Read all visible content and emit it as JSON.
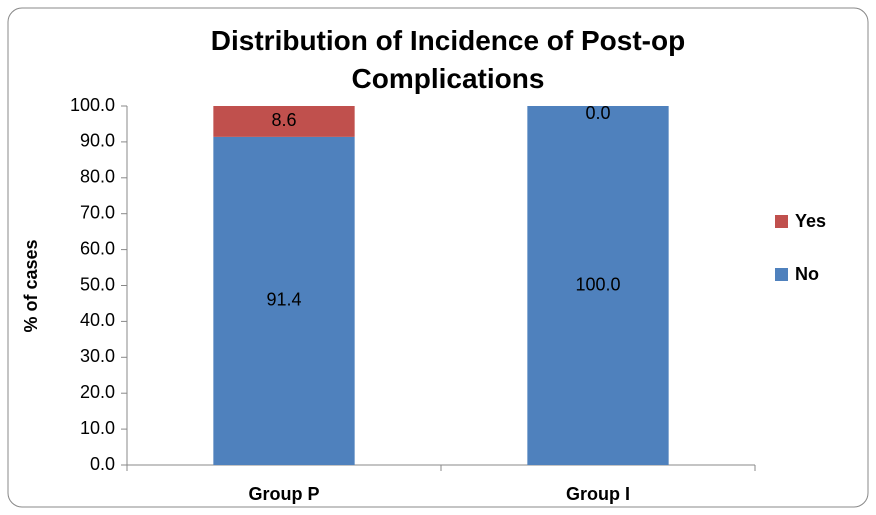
{
  "chart_data": {
    "type": "stacked_bar",
    "title": "Distribution of Incidence of Post-op Complications",
    "ylabel": "% of cases",
    "categories": [
      "Group P",
      "Group I"
    ],
    "series": [
      {
        "name": "No",
        "color": "#4f81bd",
        "values": [
          91.4,
          100
        ],
        "value_labels": [
          "91.4",
          "100.0"
        ]
      },
      {
        "name": "Yes",
        "color": "#c0504d",
        "values": [
          8.6,
          0
        ],
        "value_labels": [
          "8.6",
          "0.0"
        ]
      }
    ],
    "ylim": [
      0,
      100
    ],
    "yticks": [
      {
        "value": 0,
        "label": "0.0"
      },
      {
        "value": 10,
        "label": "10.0"
      },
      {
        "value": 20,
        "label": "20.0"
      },
      {
        "value": 30,
        "label": "30.0"
      },
      {
        "value": 40,
        "label": "40.0"
      },
      {
        "value": 50,
        "label": "50.0"
      },
      {
        "value": 60,
        "label": "60.0"
      },
      {
        "value": 70,
        "label": "70.0"
      },
      {
        "value": 80,
        "label": "80.0"
      },
      {
        "value": 90,
        "label": "90.0"
      },
      {
        "value": 100,
        "label": "100.0"
      }
    ],
    "grid": false,
    "legend": "right"
  }
}
